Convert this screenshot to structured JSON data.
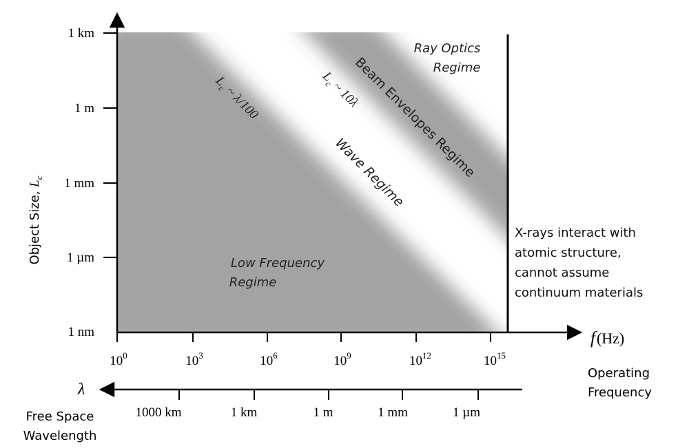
{
  "y_axis": {
    "title": "Object Size, ",
    "title_symbol": "L",
    "title_subscript": "c",
    "ticks": [
      "1 km",
      "1 m",
      "1 mm",
      "1 µm",
      "1 nm"
    ]
  },
  "x_axis": {
    "title_symbol": "f",
    "title_unit": "(Hz)",
    "caption_line1": "Operating",
    "caption_line2": "Frequency",
    "ticks": [
      {
        "base": "10",
        "exp": "0"
      },
      {
        "base": "10",
        "exp": "3"
      },
      {
        "base": "10",
        "exp": "6"
      },
      {
        "base": "10",
        "exp": "9"
      },
      {
        "base": "10",
        "exp": "12"
      },
      {
        "base": "10",
        "exp": "15"
      }
    ]
  },
  "wavelength_axis": {
    "symbol": "λ",
    "caption_line1": "Free Space",
    "caption_line2": "Wavelength",
    "ticks": [
      "1000 km",
      "1 km",
      "1 m",
      "1 mm",
      "1 µm"
    ]
  },
  "regions": {
    "ray_optics_line1": "Ray Optics",
    "ray_optics_line2": "Regime",
    "beam_envelopes": "Beam Envelopes Regime",
    "wave": "Wave Regime",
    "low_freq_line1": "Low Frequency",
    "low_freq_line2": "Regime"
  },
  "boundaries": {
    "lower_prefix": "L",
    "lower_sub": "c",
    "lower_rest": " ~ λ/100",
    "upper_prefix": "L",
    "upper_sub": "c",
    "upper_rest": " ~ 10λ"
  },
  "xray_note": [
    "X-rays interact with",
    "atomic structure,",
    "cannot assume",
    "continuum materials"
  ],
  "colors": {
    "dark_band": "#a3a3a3",
    "light_band": "#f2f2f2",
    "axis": "#000000"
  }
}
